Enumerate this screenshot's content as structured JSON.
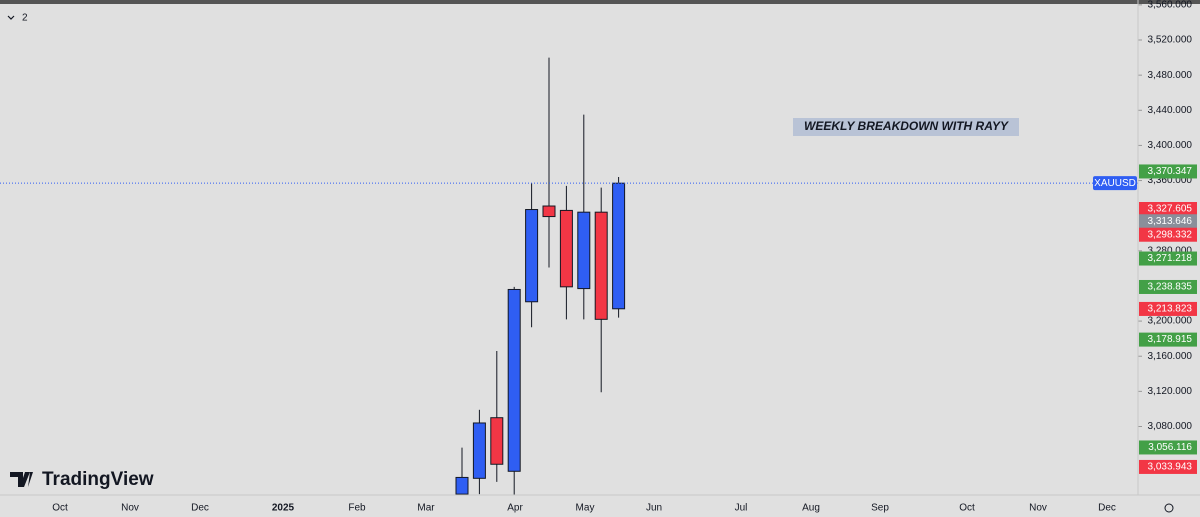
{
  "chart_data": {
    "type": "candlestick",
    "symbol": "XAUUSD",
    "interval_label": "2",
    "annotation": "WEEKLY BREAKDOWN WITH RAYY",
    "brand": "TradingView",
    "up_color": "#2f5ef3",
    "down_color": "#f23645",
    "candles": [
      {
        "open": 3003,
        "high": 3056,
        "low": 2990,
        "close": 3022
      },
      {
        "open": 3021,
        "high": 3099,
        "low": 3003,
        "close": 3084
      },
      {
        "open": 3090,
        "high": 3166,
        "low": 3017,
        "close": 3037
      },
      {
        "open": 3029,
        "high": 3239,
        "low": 3000,
        "close": 3236
      },
      {
        "open": 3222,
        "high": 3357,
        "low": 3193,
        "close": 3327
      },
      {
        "open": 3331,
        "high": 3500,
        "low": 3261,
        "close": 3319
      },
      {
        "open": 3326,
        "high": 3354,
        "low": 3202,
        "close": 3239
      },
      {
        "open": 3237,
        "high": 3435,
        "low": 3202,
        "close": 3324
      },
      {
        "open": 3324,
        "high": 3352,
        "low": 3119,
        "close": 3202
      },
      {
        "open": 3214,
        "high": 3364,
        "low": 3204,
        "close": 3357
      }
    ],
    "x_labels": [
      "Oct",
      "Nov",
      "Dec",
      "2025",
      "Feb",
      "Mar",
      "Apr",
      "May",
      "Jun",
      "Jul",
      "Aug",
      "Sep",
      "Oct",
      "Nov",
      "Dec"
    ],
    "ylim": [
      3002,
      3561
    ],
    "yticks": [
      {
        "value": 3560,
        "label": "3,560.000"
      },
      {
        "value": 3520,
        "label": "3,520.000"
      },
      {
        "value": 3480,
        "label": "3,480.000"
      },
      {
        "value": 3440,
        "label": "3,440.000"
      },
      {
        "value": 3400,
        "label": "3,400.000"
      },
      {
        "value": 3360,
        "label": "3,360.000"
      },
      {
        "value": 3280,
        "label": "3,280.000"
      },
      {
        "value": 3200,
        "label": "3,200.000"
      },
      {
        "value": 3160,
        "label": "3,160.000"
      },
      {
        "value": 3120,
        "label": "3,120.000"
      },
      {
        "value": 3080,
        "label": "3,080.000"
      }
    ],
    "price_labels": [
      {
        "value": 3370.347,
        "label": "3,370.347",
        "color": "#43a047"
      },
      {
        "value": 3327.605,
        "label": "3,327.605",
        "color": "#f23645"
      },
      {
        "value": 3313.646,
        "label": "3,313.646",
        "color": "#8a8f9a"
      },
      {
        "value": 3298.332,
        "label": "3,298.332",
        "color": "#f23645"
      },
      {
        "value": 3271.218,
        "label": "3,271.218",
        "color": "#43a047"
      },
      {
        "value": 3238.835,
        "label": "3,238.835",
        "color": "#43a047"
      },
      {
        "value": 3213.823,
        "label": "3,213.823",
        "color": "#f23645"
      },
      {
        "value": 3178.915,
        "label": "3,178.915",
        "color": "#43a047"
      },
      {
        "value": 3056.116,
        "label": "3,056.116",
        "color": "#43a047"
      },
      {
        "value": 3033.943,
        "label": "3,033.943",
        "color": "#f23645"
      }
    ]
  }
}
